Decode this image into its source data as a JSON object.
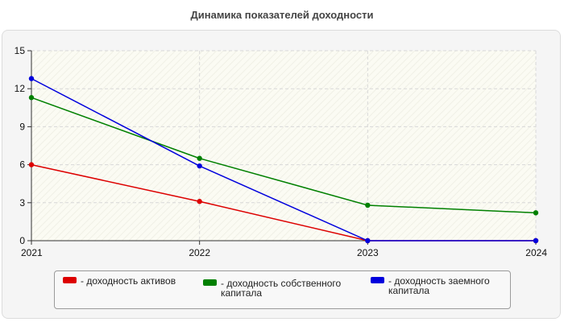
{
  "title": "Динамика показателей доходности",
  "chart_data": {
    "type": "line",
    "title": "Динамика показателей доходности",
    "xlabel": "",
    "ylabel": "",
    "x": [
      "2021",
      "2022",
      "2023",
      "2024"
    ],
    "ylim": [
      0,
      15
    ],
    "yticks": [
      "0",
      "3",
      "6",
      "9",
      "12",
      "15"
    ],
    "grid": true,
    "legend_position": "bottom",
    "series": [
      {
        "name": "- доходность активов",
        "color": "#dd0000",
        "values": [
          6.0,
          3.1,
          0.0,
          0.0
        ]
      },
      {
        "name": "- доходность собственного капитала",
        "color": "#008000",
        "values": [
          11.3,
          6.5,
          2.8,
          2.2
        ]
      },
      {
        "name": "- доходность заемного капитала",
        "color": "#0000dd",
        "values": [
          12.8,
          5.9,
          0.0,
          0.0
        ]
      }
    ]
  }
}
